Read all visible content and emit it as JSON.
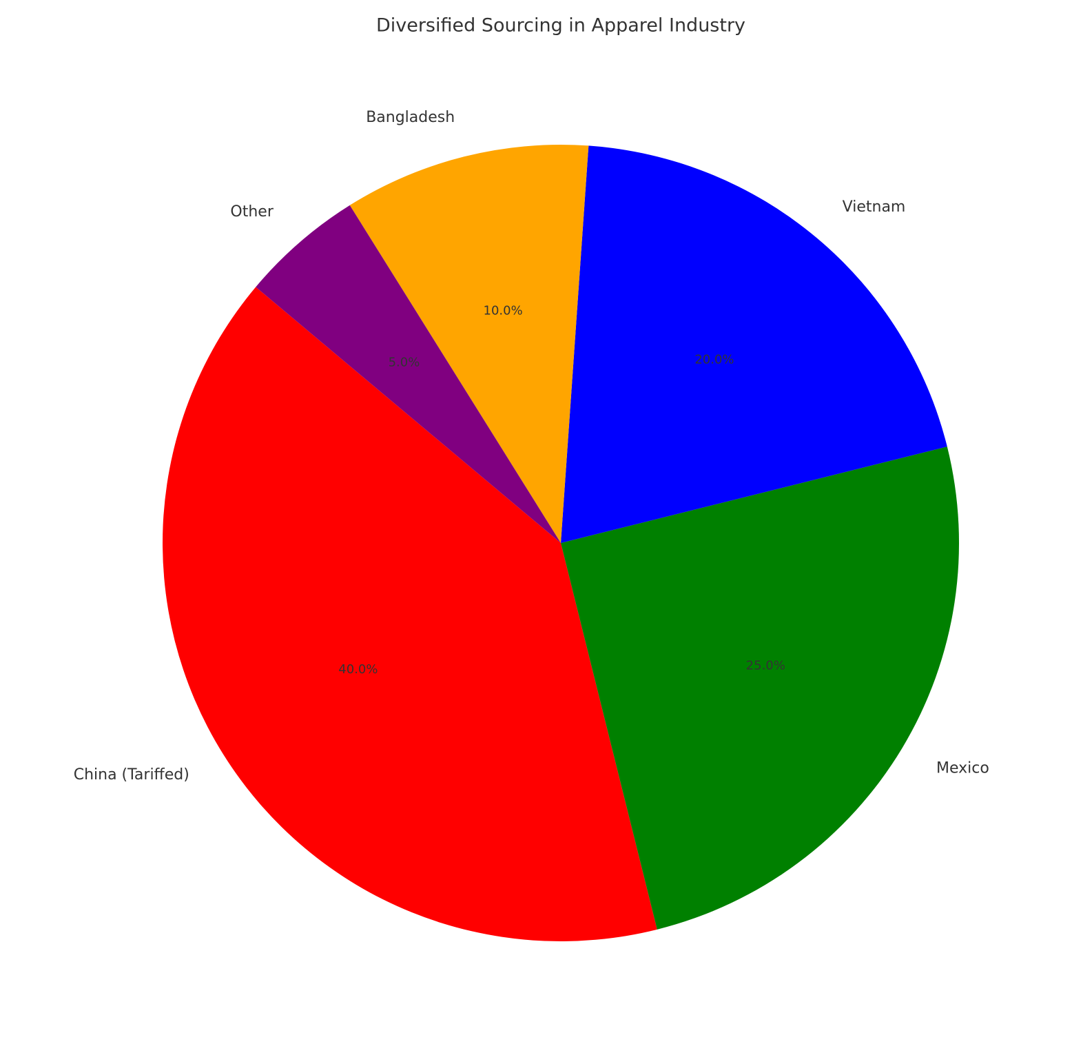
{
  "chart_data": {
    "type": "pie",
    "title": "Diversified Sourcing in Apparel Industry",
    "categories": [
      "China (Tariffed)",
      "Mexico",
      "Vietnam",
      "Bangladesh",
      "Other"
    ],
    "values": [
      40,
      25,
      20,
      10,
      5
    ],
    "value_labels": [
      "40.0%",
      "25.0%",
      "20.0%",
      "10.0%",
      "5.0%"
    ],
    "colors": [
      "red",
      "green",
      "blue",
      "orange",
      "purple"
    ]
  }
}
